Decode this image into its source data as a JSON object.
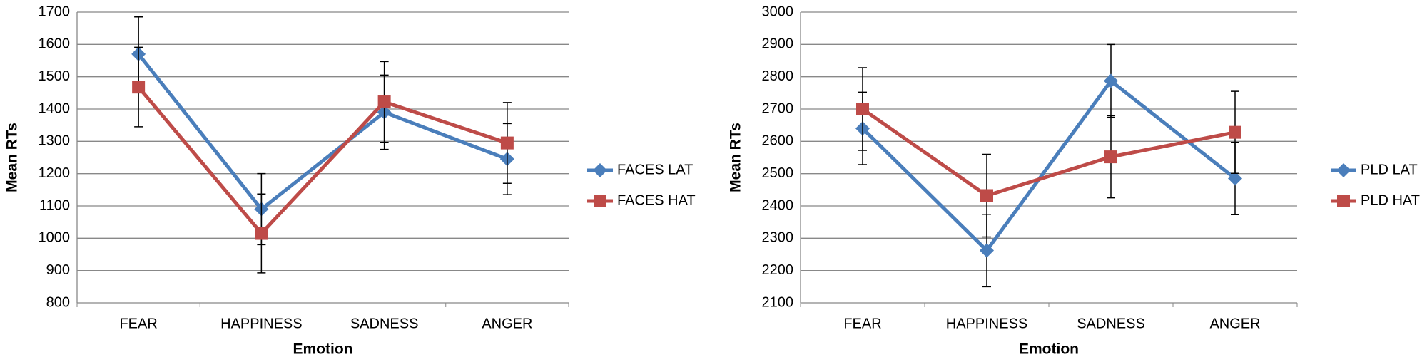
{
  "chart_data": [
    {
      "type": "line",
      "x_label": "Emotion",
      "y_label": "Mean RTs",
      "categories": [
        "FEAR",
        "HAPPINESS",
        "SADNESS",
        "ANGER"
      ],
      "series": [
        {
          "name": "FACES LAT",
          "color": "#4a7ebb",
          "marker": "diamond",
          "values": [
            1570,
            1090,
            1390,
            1245
          ],
          "errors": [
            115,
            110,
            115,
            110
          ]
        },
        {
          "name": "FACES HAT",
          "color": "#be4b48",
          "marker": "square",
          "values": [
            1468,
            1015,
            1422,
            1295
          ],
          "errors": [
            123,
            122,
            125,
            125
          ]
        }
      ],
      "ylim": [
        800,
        1700
      ],
      "yticks": [
        800,
        900,
        1000,
        1100,
        1200,
        1300,
        1400,
        1500,
        1600,
        1700
      ],
      "grid": true,
      "legend": "right"
    },
    {
      "type": "line",
      "x_label": "Emotion",
      "y_label": "Mean RTs",
      "categories": [
        "FEAR",
        "HAPPINESS",
        "SADNESS",
        "ANGER"
      ],
      "series": [
        {
          "name": "PLD LAT",
          "color": "#4a7ebb",
          "marker": "diamond",
          "values": [
            2640,
            2262,
            2787,
            2485
          ],
          "errors": [
            112,
            112,
            113,
            112
          ]
        },
        {
          "name": "PLD HAT",
          "color": "#be4b48",
          "marker": "square",
          "values": [
            2700,
            2432,
            2552,
            2628
          ],
          "errors": [
            128,
            128,
            127,
            127
          ]
        }
      ],
      "ylim": [
        2100,
        3000
      ],
      "yticks": [
        2100,
        2200,
        2300,
        2400,
        2500,
        2600,
        2700,
        2800,
        2900,
        3000
      ],
      "grid": true,
      "legend": "right"
    }
  ]
}
